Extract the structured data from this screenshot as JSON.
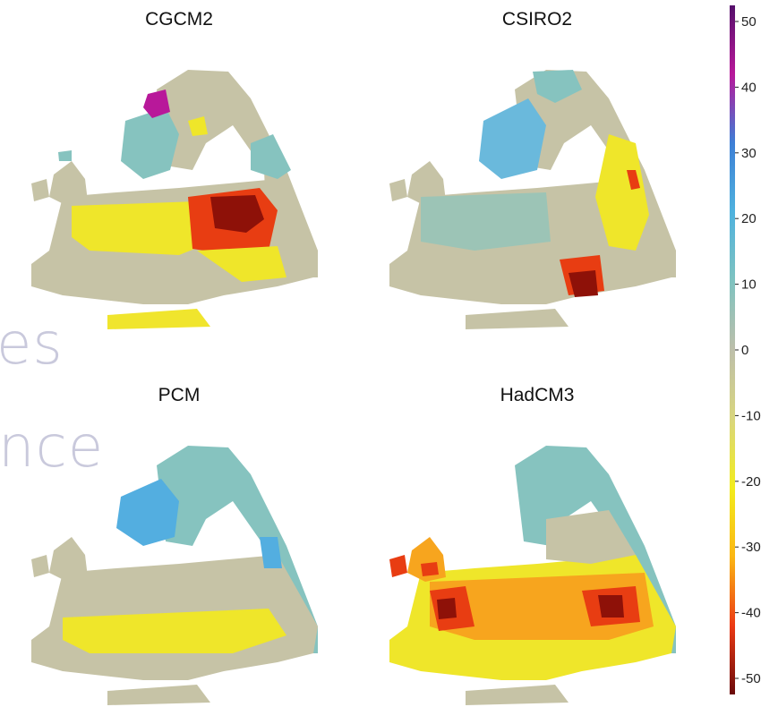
{
  "panels": [
    {
      "id": "cgcm2",
      "title": "CGCM2"
    },
    {
      "id": "csiro2",
      "title": "CSIRO2"
    },
    {
      "id": "pcm",
      "title": "PCM"
    },
    {
      "id": "hadcm3",
      "title": "HadCM3"
    }
  ],
  "background_text": [
    "es",
    "nce"
  ],
  "colorbar": {
    "ticks": [
      "50",
      "40",
      "30",
      "20",
      "10",
      "0",
      "-10",
      "-20",
      "-30",
      "-40",
      "-50"
    ],
    "stops": [
      "#55106b",
      "#b8189a",
      "#3d7fd6",
      "#4fb2de",
      "#7fc3c0",
      "#bdbfaa",
      "#d9d67e",
      "#f2ec1d",
      "#fbb714",
      "#ec3a14",
      "#6a0a0a"
    ]
  },
  "colors": {
    "neutral_land": "#c6c3a6",
    "teal": "#86c3bf",
    "light_blue": "#53aee0",
    "yellow": "#efe62a",
    "orange": "#f7a51e",
    "red": "#e83d12",
    "dark_red": "#8e1108",
    "magenta": "#b8189a"
  }
}
